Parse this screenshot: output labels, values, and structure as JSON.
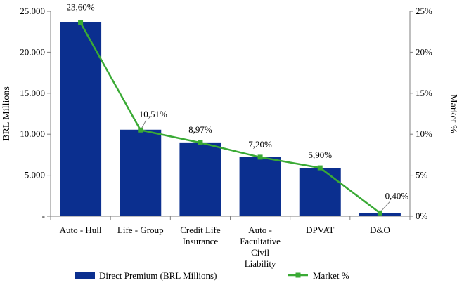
{
  "chart_data": {
    "type": "bar",
    "categories": [
      [
        "Auto - Hull"
      ],
      [
        "Life - Group"
      ],
      [
        "Credit Life",
        "Insurance"
      ],
      [
        "Auto -",
        "Facultative",
        "Civil",
        "Liability"
      ],
      [
        "DPVAT"
      ],
      [
        "D&O"
      ]
    ],
    "series": [
      {
        "name": "Direct Premium (BRL Millions)",
        "kind": "bar",
        "axis": "left",
        "values": [
          23700,
          10550,
          9000,
          7250,
          5900,
          350
        ]
      },
      {
        "name": "Market %",
        "kind": "line",
        "axis": "right",
        "values": [
          23.6,
          10.51,
          8.97,
          7.2,
          5.9,
          0.4
        ],
        "labels": [
          "23,60%",
          "10,51%",
          "8,97%",
          "7,20%",
          "5,90%",
          "0,40%"
        ]
      }
    ],
    "ylabel": "BRL Millions",
    "y2label": "Market %",
    "ylim": [
      0,
      25000
    ],
    "y2lim": [
      0,
      25
    ],
    "yticks": [
      "-",
      "5.000",
      "10.000",
      "15.000",
      "20.000",
      "25.000"
    ],
    "y2ticks": [
      "0%",
      "5%",
      "10%",
      "15%",
      "20%",
      "25%"
    ],
    "colors": {
      "bar": "#0b2f8f",
      "line": "#3aaa35",
      "axis": "#7f7f7f"
    },
    "grid": false,
    "legend_position": "bottom"
  }
}
